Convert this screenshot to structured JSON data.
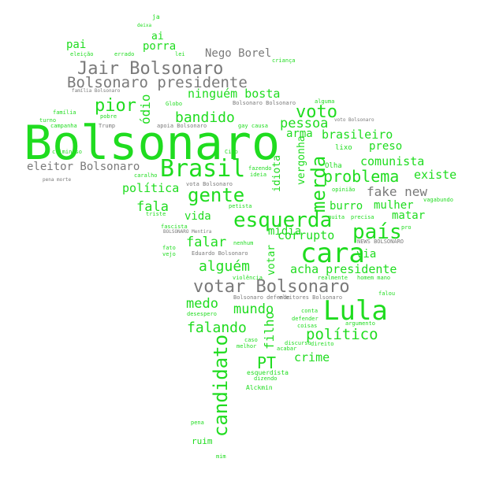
{
  "colors": {
    "green": "#1fdc1f",
    "gray": "#7a7a7a",
    "background": "#ffffff"
  },
  "words": [
    "Bolsonaro",
    "Brasil",
    "Jair Bolsonaro",
    "Bolsonaro presidente",
    "votar Bolsonaro",
    "cara",
    "Lula",
    "esquerda",
    "gente",
    "candidato",
    "país",
    "problema",
    "merda",
    "bandido",
    "pior",
    "voto",
    "ninguém bosta",
    "político",
    "falando",
    "alguém",
    "eleitor Bolsonaro",
    "fake new",
    "pessoa",
    "Nego Borel",
    "brasileiro",
    "comunista",
    "existe",
    "fala",
    "mídia",
    "corrupto",
    "acha presidente",
    "crime",
    "PT",
    "mundo",
    "medo",
    "falar",
    "vida",
    "política",
    "burro",
    "mulher",
    "matar",
    "preso",
    "via",
    "ódio",
    "arma",
    "vergonha",
    "idiota",
    "filho",
    "votar",
    "porra",
    "pai",
    "ai",
    "bosta",
    "lixo",
    "Olha"
  ]
}
